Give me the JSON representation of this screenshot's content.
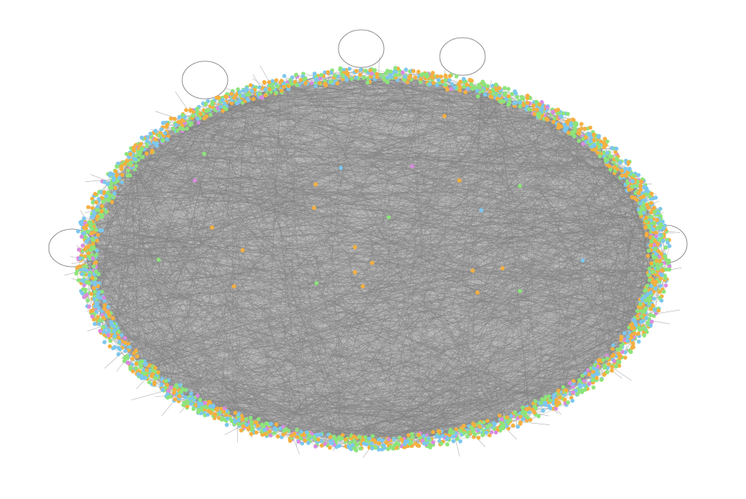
{
  "graph": {
    "layout": "ellipse-ring",
    "background": "#ffffff",
    "edge_color": "#808080",
    "node_colors": [
      "#8de47b",
      "#7cc7ee",
      "#f5b040",
      "#d98be0"
    ],
    "color_weights": [
      0.36,
      0.26,
      0.31,
      0.07
    ],
    "ring_node_count": 2600,
    "interior_node_count": 2200,
    "edge_count": 1800,
    "self_loops": [
      {
        "label": "loop-top-left"
      },
      {
        "label": "loop-top-center"
      },
      {
        "label": "loop-top-right"
      },
      {
        "label": "loop-left"
      },
      {
        "label": "loop-right"
      }
    ],
    "isolated_interior_nodes": [
      {
        "color": "#8de47b"
      },
      {
        "color": "#7cc7ee"
      },
      {
        "color": "#d98be0"
      },
      {
        "color": "#f5b040"
      },
      {
        "color": "#f5b040"
      },
      {
        "color": "#8de47b"
      },
      {
        "color": "#d98be0"
      },
      {
        "color": "#f5b040"
      },
      {
        "color": "#f5b040"
      },
      {
        "color": "#8de47b"
      },
      {
        "color": "#7cc7ee"
      },
      {
        "color": "#f5b040"
      },
      {
        "color": "#f5b040"
      },
      {
        "color": "#8de47b"
      },
      {
        "color": "#f5b040"
      },
      {
        "color": "#f5b040"
      },
      {
        "color": "#f5b040"
      },
      {
        "color": "#f5b040"
      },
      {
        "color": "#f5b040"
      },
      {
        "color": "#7cc7ee"
      },
      {
        "color": "#f5b040"
      },
      {
        "color": "#8de47b"
      },
      {
        "color": "#f5b040"
      },
      {
        "color": "#f5b040"
      },
      {
        "color": "#8de47b"
      }
    ]
  }
}
